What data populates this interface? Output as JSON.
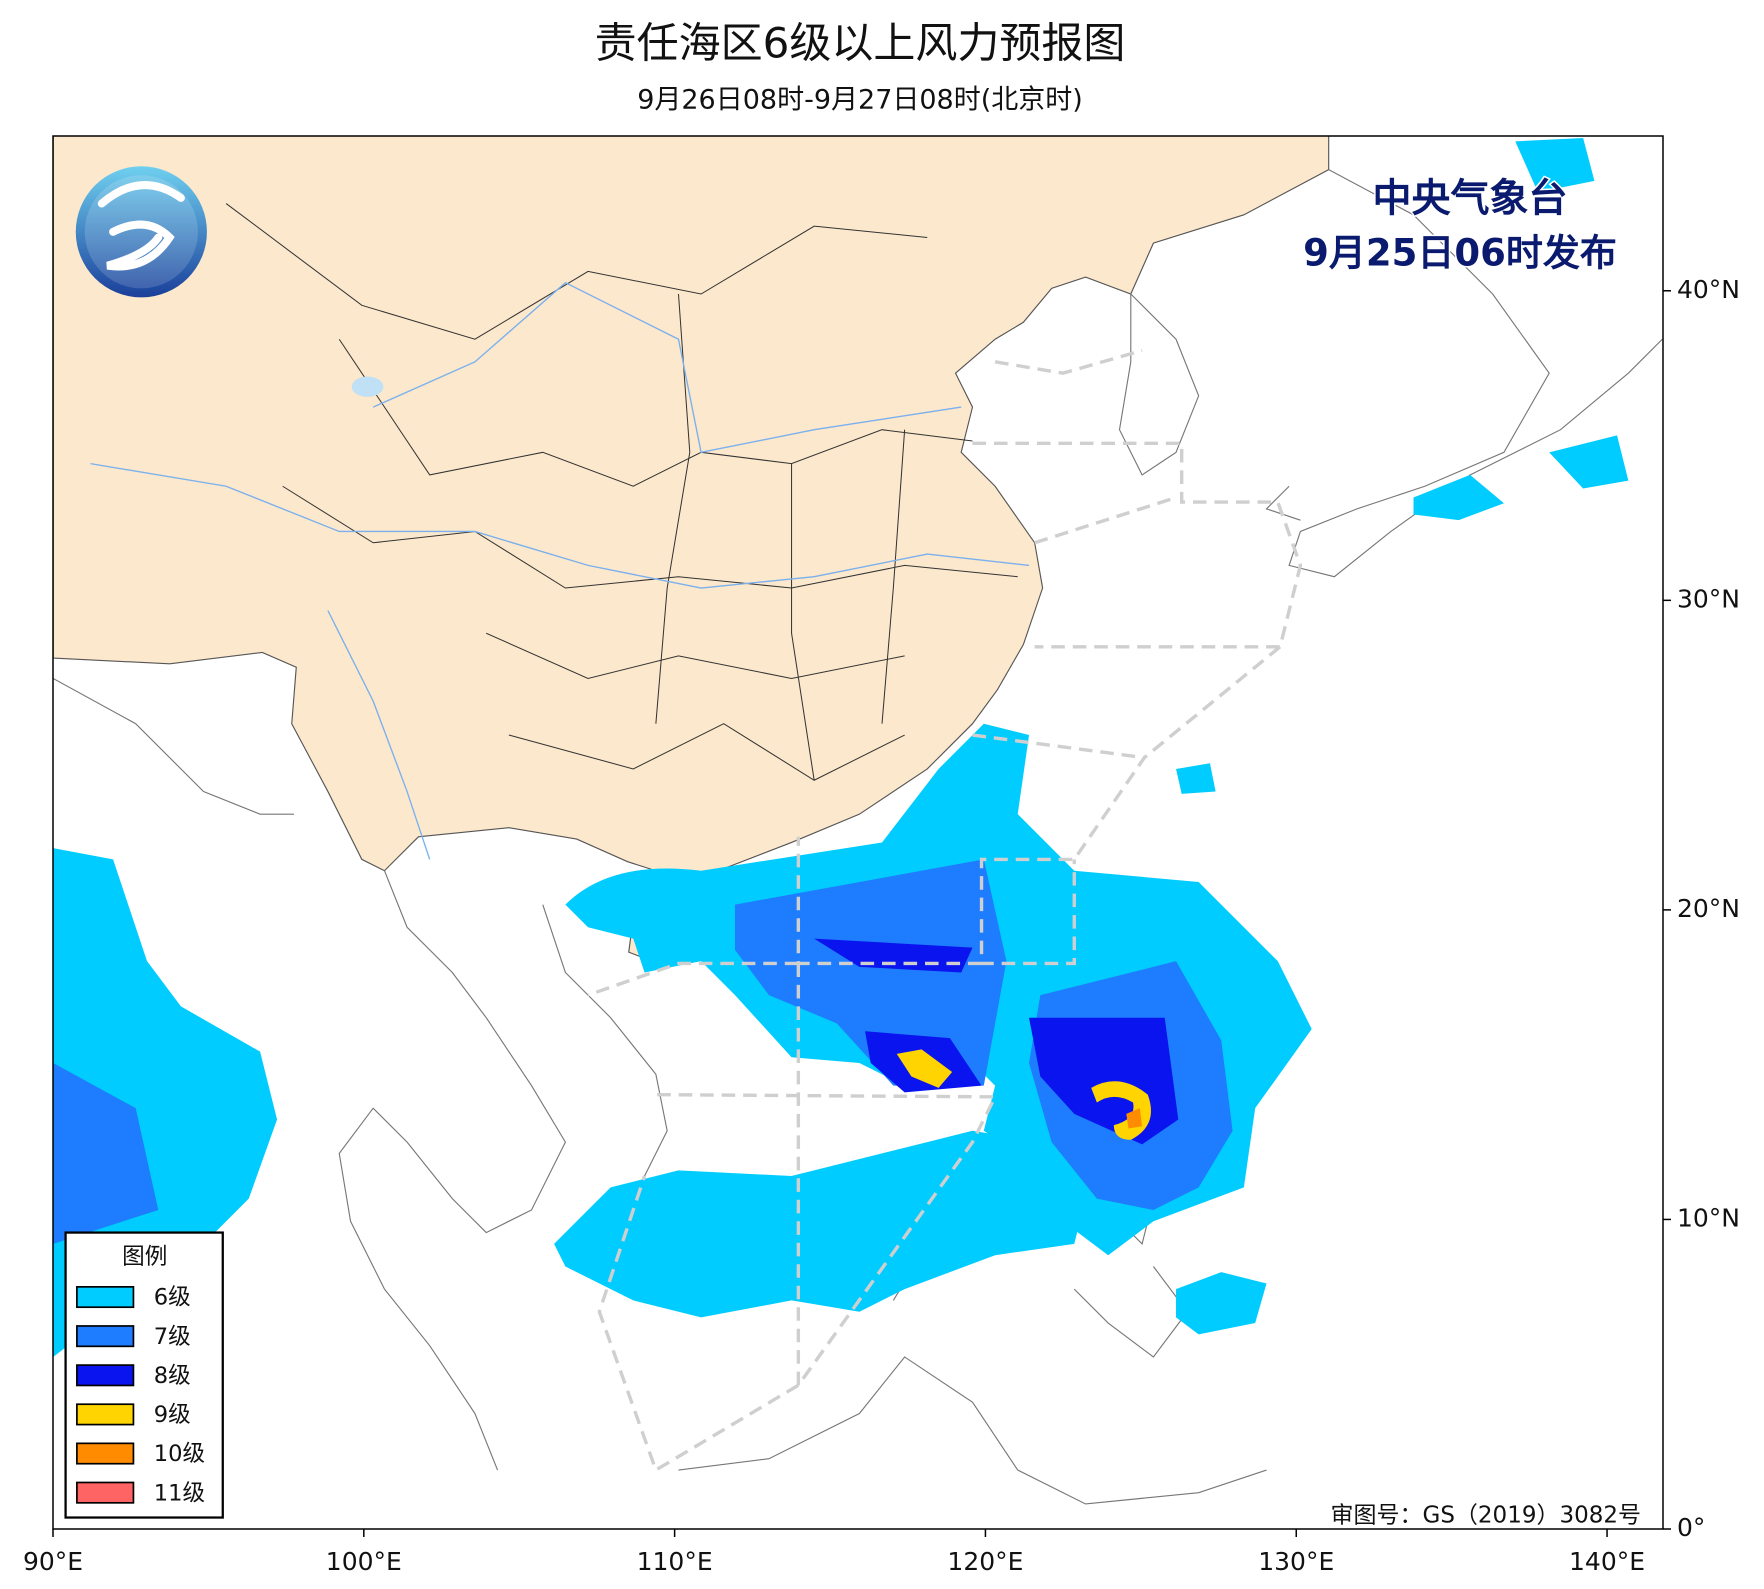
{
  "title": "责任海区6级以上风力预报图",
  "subtitle": "9月26日08时-9月27日08时(北京时)",
  "agency": "中央气象台",
  "issued": "9月25日06时发布",
  "map_approval": "审图号：GS（2019）3082号",
  "map": {
    "xlim": [
      90,
      141.8
    ],
    "ylim": [
      0,
      45
    ],
    "xticks": [
      {
        "value": 90,
        "label": "90°E"
      },
      {
        "value": 100,
        "label": "100°E"
      },
      {
        "value": 110,
        "label": "110°E"
      },
      {
        "value": 120,
        "label": "120°E"
      },
      {
        "value": 130,
        "label": "130°E"
      },
      {
        "value": 140,
        "label": "140°E"
      }
    ],
    "yticks": [
      {
        "value": 0,
        "label": "0°"
      },
      {
        "value": 10,
        "label": "10°N"
      },
      {
        "value": 20,
        "label": "20°N"
      },
      {
        "value": 30,
        "label": "30°N"
      },
      {
        "value": 40,
        "label": "40°N"
      }
    ]
  },
  "legend": {
    "title": "图例",
    "items": [
      {
        "name": "6级",
        "color": "#00ccff"
      },
      {
        "name": "7级",
        "color": "#1e7cff"
      },
      {
        "name": "8级",
        "color": "#0a14ee"
      },
      {
        "name": "9级",
        "color": "#ffd400"
      },
      {
        "name": "10级",
        "color": "#ff8c00"
      },
      {
        "name": "11级",
        "color": "#ff6464"
      }
    ]
  }
}
